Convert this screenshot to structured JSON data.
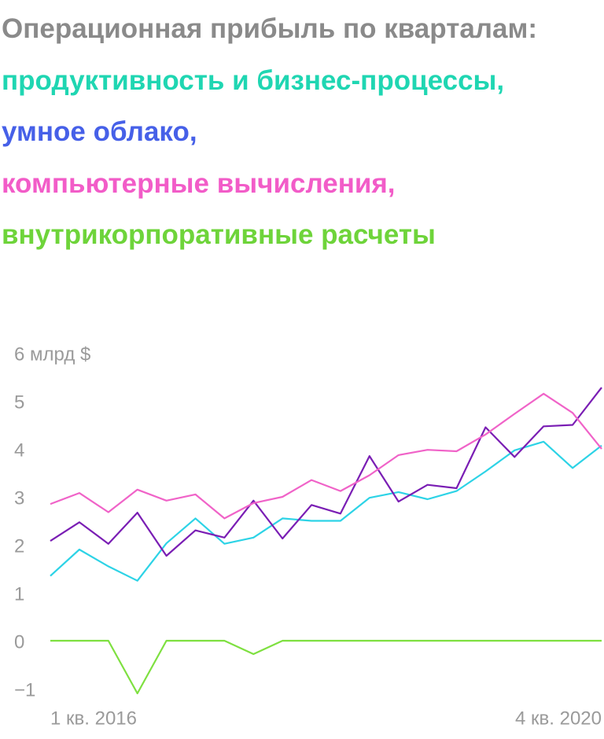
{
  "chart_data": {
    "type": "line",
    "title": "Операционная прибыль по кварталам:",
    "categories": [
      "1 кв. 2016",
      null,
      null,
      null,
      null,
      null,
      null,
      null,
      null,
      null,
      null,
      null,
      null,
      null,
      null,
      null,
      null,
      null,
      null,
      "4 кв. 2020"
    ],
    "series": [
      {
        "name": "продуктивность и бизнес-процессы,",
        "color": "#2dd3e6",
        "legend_color": "#1fd6b2",
        "values": [
          1.4,
          1.95,
          1.6,
          1.3,
          2.08,
          2.6,
          2.07,
          2.2,
          2.6,
          2.55,
          2.55,
          3.03,
          3.15,
          3.0,
          3.17,
          3.58,
          4.02,
          4.2,
          3.65,
          4.12
        ]
      },
      {
        "name": "умное облако,",
        "color": "#7a1eb4",
        "legend_color": "#4660e8",
        "values": [
          2.13,
          2.52,
          2.07,
          2.72,
          1.82,
          2.35,
          2.2,
          2.97,
          2.18,
          2.88,
          2.7,
          3.9,
          2.95,
          3.3,
          3.23,
          4.5,
          3.88,
          4.52,
          4.55,
          5.33
        ]
      },
      {
        "name": "компьютерные вычисления,",
        "color": "#f063c8",
        "legend_color": "#f25cc8",
        "values": [
          2.9,
          3.13,
          2.73,
          3.2,
          2.97,
          3.1,
          2.6,
          2.92,
          3.05,
          3.4,
          3.17,
          3.5,
          3.92,
          4.03,
          4.0,
          4.35,
          4.78,
          5.2,
          4.8,
          4.05
        ]
      },
      {
        "name": "внутрикорпоративные расчеты",
        "color": "#7ee040",
        "legend_color": "#6ed43a",
        "values": [
          0.05,
          0.05,
          0.05,
          -1.05,
          0.05,
          0.05,
          0.05,
          -0.23,
          0.05,
          0.05,
          0.05,
          0.05,
          0.05,
          0.05,
          0.05,
          0.05,
          0.05,
          0.05,
          0.05,
          0.05
        ]
      }
    ],
    "ylim": [
      -1,
      6
    ],
    "yticks": [
      {
        "value": -1,
        "label": "−1"
      },
      0,
      1,
      2,
      3,
      4,
      5,
      {
        "value": 6,
        "label": "6 млрд $"
      }
    ],
    "grid": false
  }
}
